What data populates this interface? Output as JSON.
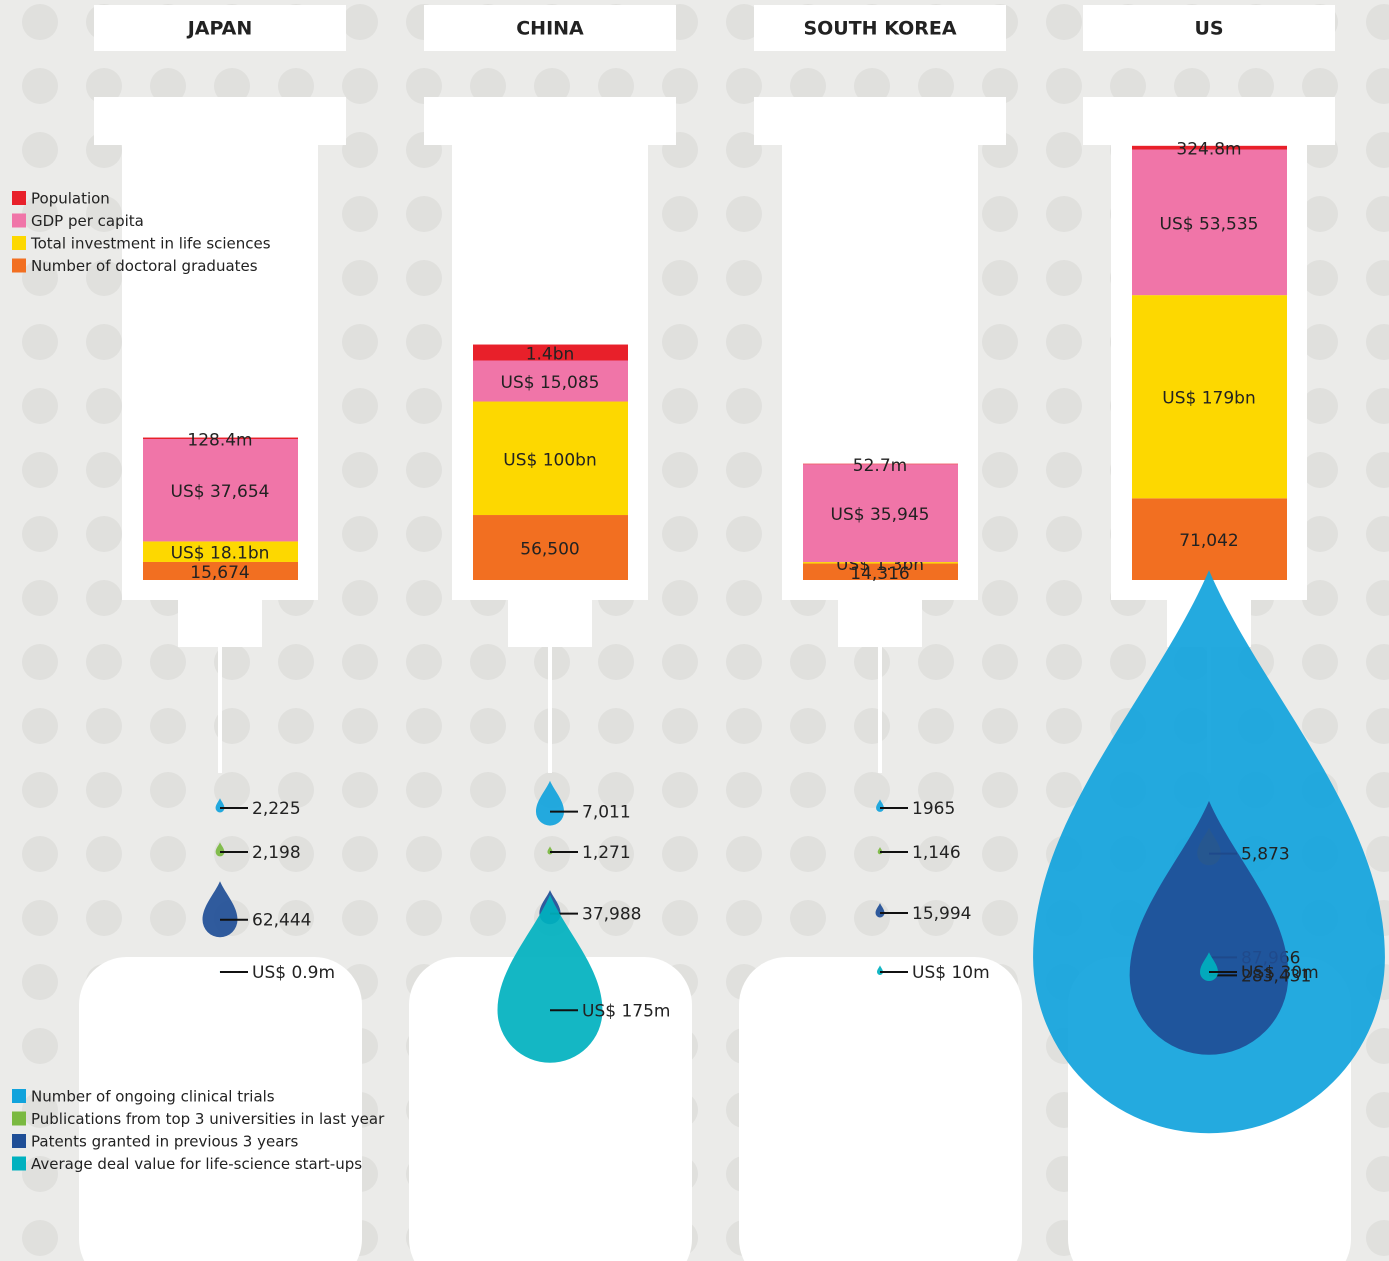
{
  "chart_data": {
    "type": "syringe",
    "categories": [
      "JAPAN",
      "CHINA",
      "SOUTH KOREA",
      "US"
    ],
    "series": [
      {
        "name": "Population",
        "color": "#e8202a",
        "values": [
          128.4,
          1400,
          52.7,
          324.8
        ],
        "value_labels": [
          "128.4m",
          "1.4bn",
          "52.7m",
          "324.8m"
        ]
      },
      {
        "name": "GDP per capita",
        "color": "#f075a8",
        "values": [
          37654,
          15085,
          35945,
          53535
        ],
        "value_labels": [
          "US$ 37,654",
          "US$ 15,085",
          "US$ 35,945",
          "US$ 53,535"
        ]
      },
      {
        "name": "Total investment in life sciences",
        "color": "#fdd800",
        "values": [
          18.1,
          100,
          1.3,
          179
        ],
        "value_labels": [
          "US$ 18.1bn",
          "US$ 100bn",
          "US$ 1.3bn",
          "US$ 179bn"
        ]
      },
      {
        "name": "Number of doctoral graduates",
        "color": "#f26f21",
        "values": [
          15674,
          56500,
          14316,
          71042
        ],
        "value_labels": [
          "15,674",
          "56,500",
          "14,316",
          "71,042"
        ]
      }
    ],
    "drop_series": [
      {
        "name": "Number of ongoing clinical trials",
        "color": "#11a3dc",
        "values": [
          2225,
          7011,
          1965,
          87966
        ],
        "value_labels": [
          "2,225",
          "7,011",
          "1965",
          "87,966"
        ]
      },
      {
        "name": "Publications from top 3 universities in last year",
        "color": "#7ab940",
        "values": [
          2198,
          1271,
          1146,
          5873
        ],
        "value_labels": [
          "2,198",
          "1,271",
          "1,146",
          "5,873"
        ]
      },
      {
        "name": "Patents granted in previous 3 years",
        "color": "#1f4e96",
        "values": [
          62444,
          37988,
          15994,
          283431
        ],
        "value_labels": [
          "62,444",
          "37,988",
          "15,994",
          "283,431"
        ]
      },
      {
        "name": "Average deal value for life-science start-ups",
        "color": "#00b1bf",
        "values": [
          0.9,
          175,
          10,
          30
        ],
        "value_labels": [
          "US$ 0.9m",
          "US$ 175m",
          "US$ 10m",
          "US$ 30m"
        ]
      }
    ]
  }
}
